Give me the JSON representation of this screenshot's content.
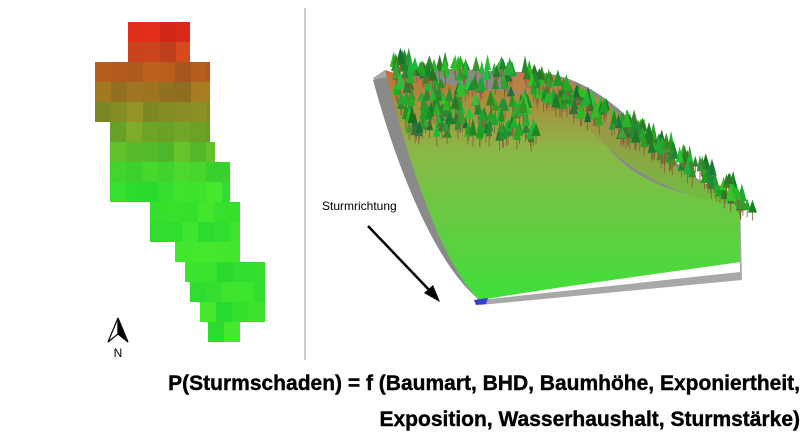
{
  "map": {
    "north_label": "N"
  },
  "terrain": {
    "wind_label": "Sturmrichtung"
  },
  "formula": {
    "lines": [
      "P(Sturmschaden) = f (Baumart, BHD, Baumhöhe, Exponiertheit,",
      "Exposition, Wasserhaushalt, Sturmstärke)"
    ]
  }
}
